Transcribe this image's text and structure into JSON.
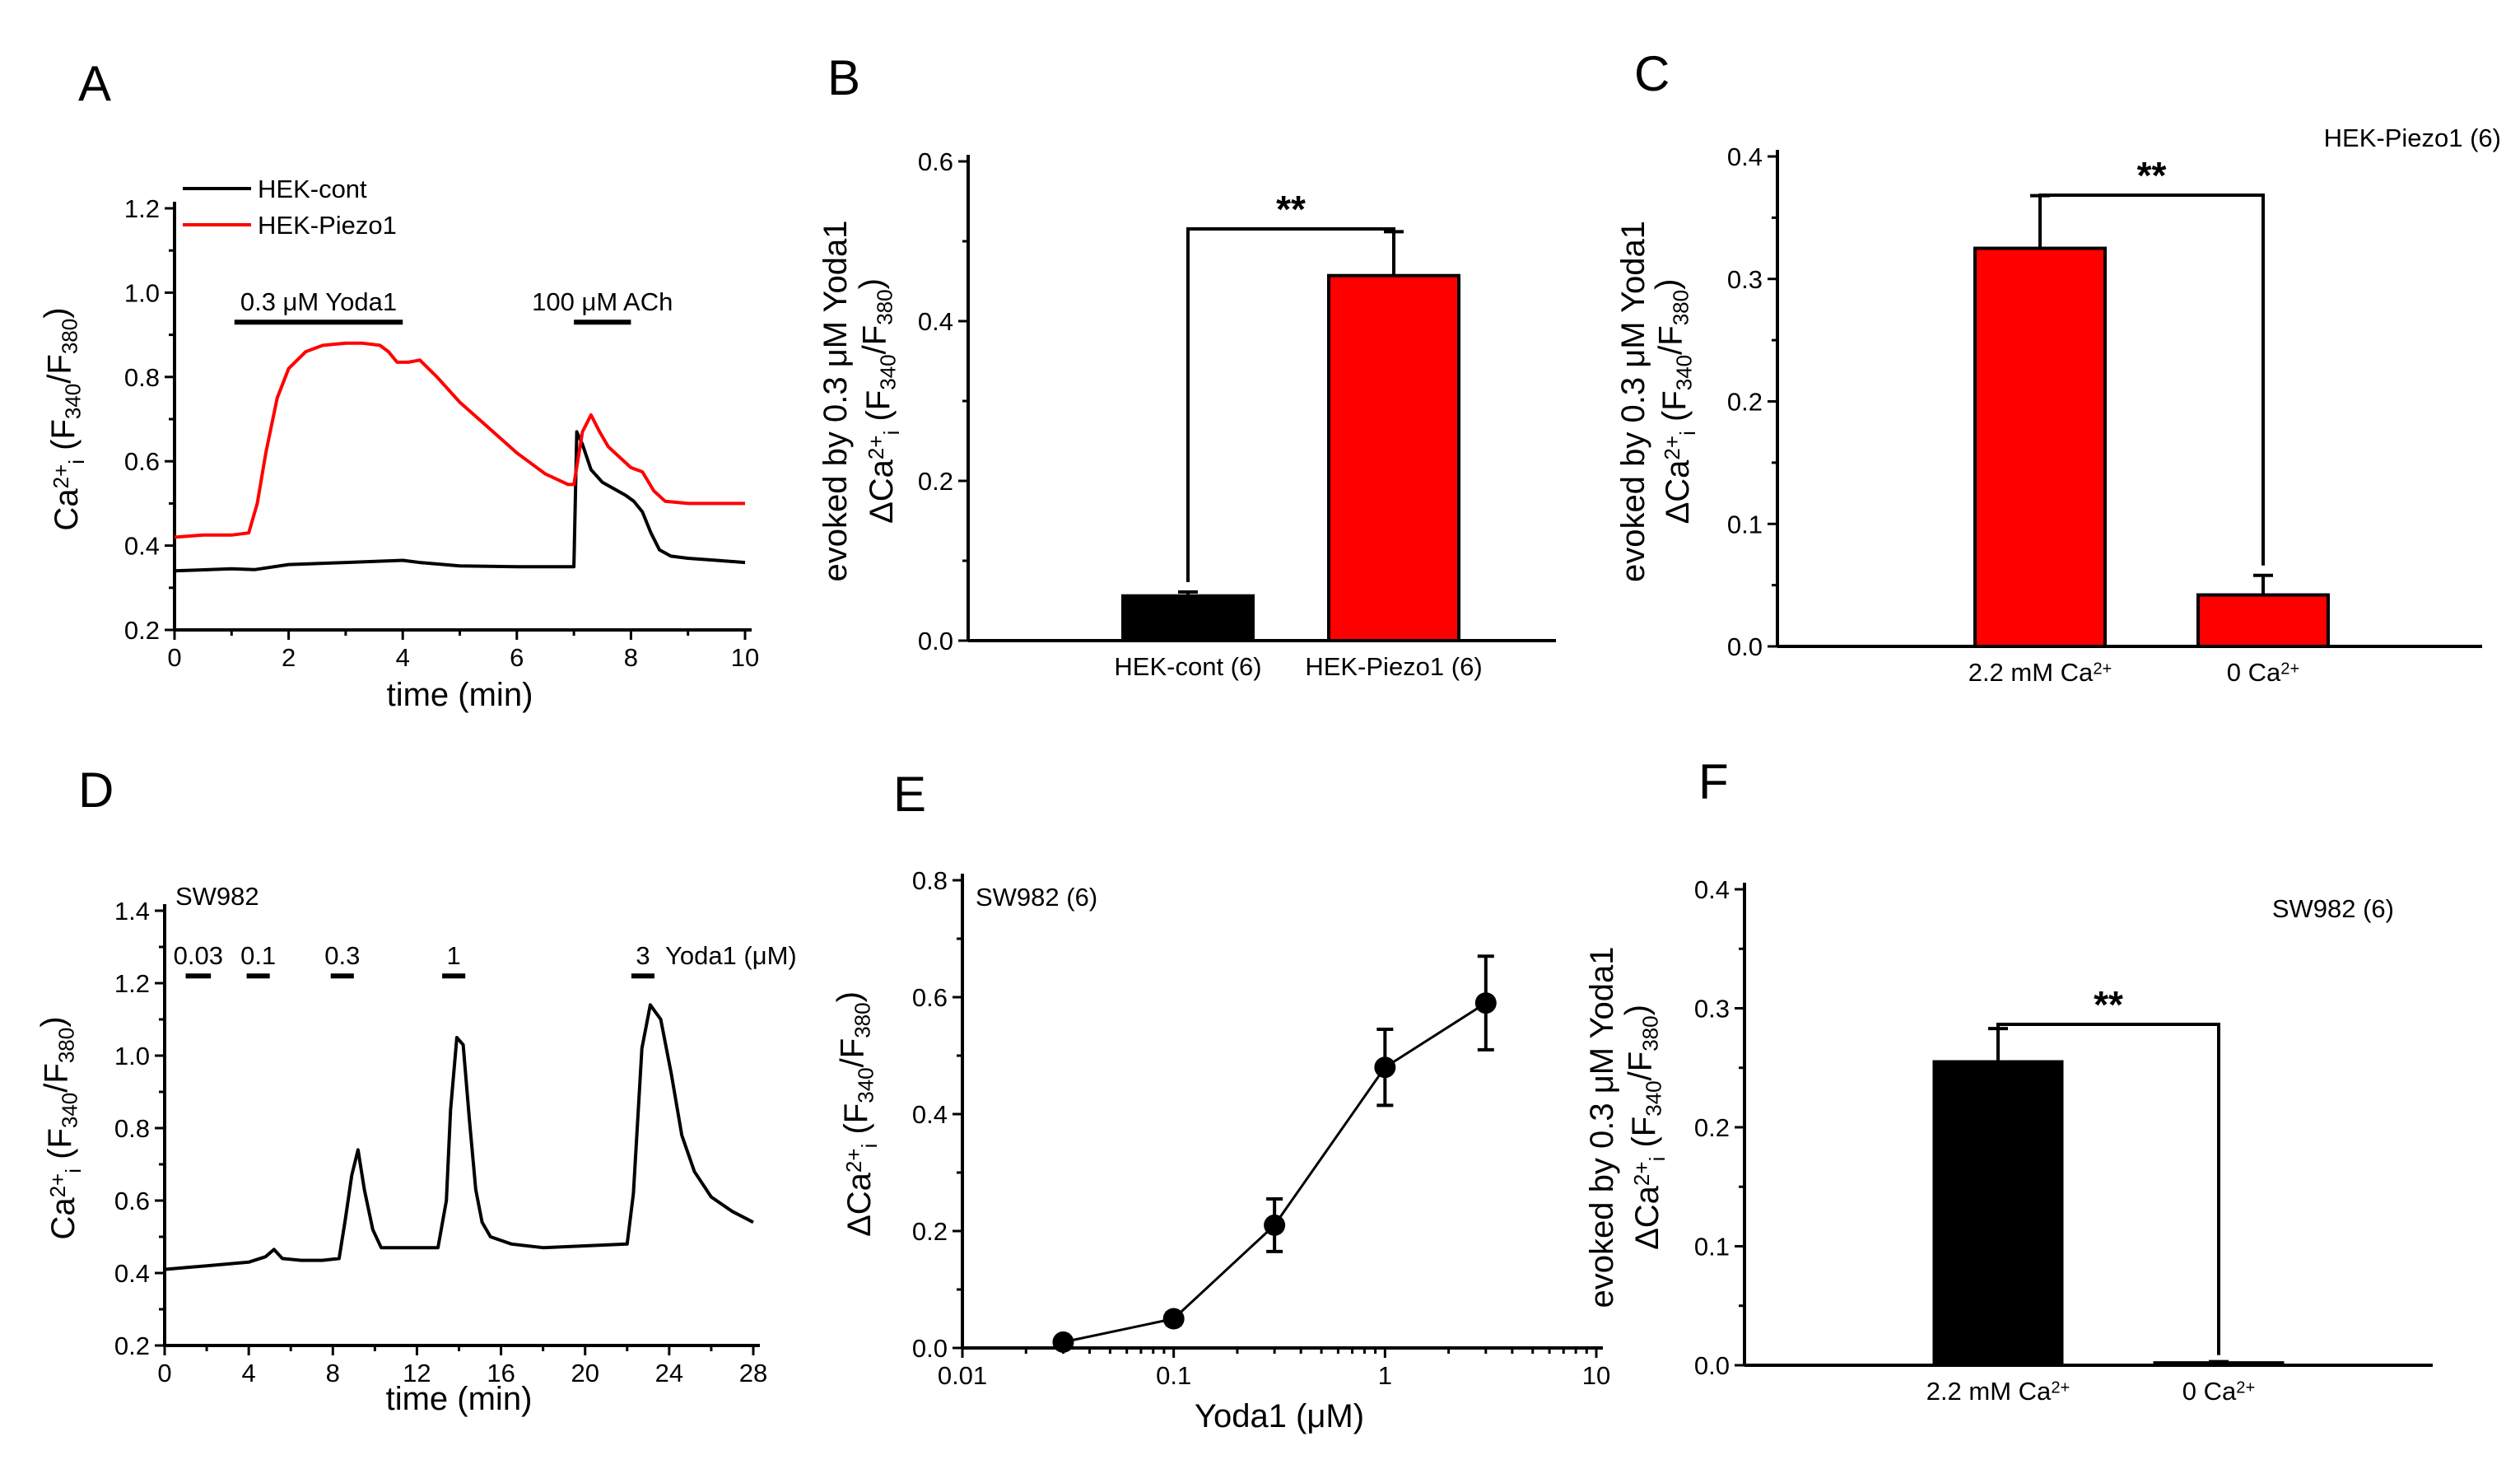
{
  "figure": {
    "panels": {
      "A": {
        "letter": "A"
      },
      "B": {
        "letter": "B"
      },
      "C": {
        "letter": "C"
      },
      "D": {
        "letter": "D",
        "annotation": "SW982"
      },
      "E": {
        "letter": "E"
      },
      "F": {
        "letter": "F"
      }
    }
  },
  "colors": {
    "red": "#ff0000",
    "black": "#000000"
  },
  "chart_data": [
    {
      "panel": "A",
      "type": "line",
      "xlabel": "time (min)",
      "ylabel": "Ca2+i (F340/F380)",
      "xlim": [
        0,
        10
      ],
      "ylim": [
        0.2,
        1.2
      ],
      "xticks": [
        0,
        2,
        4,
        6,
        8,
        10
      ],
      "yticks": [
        0.2,
        0.4,
        0.6,
        0.8,
        1.0,
        1.2
      ],
      "xtick_labels": [
        "0",
        "2",
        "4",
        "6",
        "8",
        "10"
      ],
      "ytick_labels": [
        "0.2",
        "0.4",
        "0.6",
        "0.8",
        "1.0",
        "1.2"
      ],
      "legend": [
        "HEK-cont",
        "HEK-Piezo1"
      ],
      "annotations": [
        {
          "text": "0.3 μM Yoda1",
          "x_start": 1.05,
          "x_end": 4.0,
          "y": 0.93
        },
        {
          "text": "100 μM ACh",
          "x_start": 7.0,
          "x_end": 8.0,
          "y": 0.93
        }
      ],
      "series": [
        {
          "name": "HEK-cont",
          "color": "#000000",
          "x": [
            0,
            1,
            1.4,
            2,
            3,
            4,
            4.3,
            5,
            6,
            6.9,
            7.0,
            7.05,
            7.15,
            7.3,
            7.5,
            7.7,
            7.9,
            8.05,
            8.2,
            8.35,
            8.5,
            8.7,
            9,
            9.5,
            10
          ],
          "y": [
            0.34,
            0.345,
            0.343,
            0.355,
            0.36,
            0.365,
            0.36,
            0.352,
            0.35,
            0.35,
            0.35,
            0.67,
            0.64,
            0.58,
            0.55,
            0.535,
            0.52,
            0.505,
            0.48,
            0.43,
            0.39,
            0.375,
            0.37,
            0.365,
            0.36
          ]
        },
        {
          "name": "HEK-Piezo1",
          "color": "#ff0000",
          "x": [
            0,
            0.5,
            1,
            1.3,
            1.45,
            1.6,
            1.8,
            2,
            2.3,
            2.6,
            3,
            3.3,
            3.6,
            3.75,
            3.9,
            4.1,
            4.3,
            4.6,
            5,
            5.5,
            6,
            6.5,
            6.9,
            7.0,
            7.15,
            7.3,
            7.45,
            7.6,
            7.8,
            8.0,
            8.2,
            8.4,
            8.6,
            9,
            9.5,
            10
          ],
          "y": [
            0.42,
            0.425,
            0.425,
            0.43,
            0.5,
            0.62,
            0.75,
            0.82,
            0.86,
            0.875,
            0.88,
            0.88,
            0.875,
            0.86,
            0.835,
            0.835,
            0.84,
            0.8,
            0.74,
            0.68,
            0.62,
            0.57,
            0.545,
            0.545,
            0.67,
            0.71,
            0.67,
            0.635,
            0.61,
            0.585,
            0.575,
            0.53,
            0.505,
            0.5,
            0.5,
            0.5
          ]
        }
      ]
    },
    {
      "panel": "B",
      "type": "bar",
      "ylabel_top": "ΔCa2+i (F340/F380)",
      "ylabel_bottom": "evoked by 0.3 μM Yoda1",
      "categories": [
        "HEK-cont (6)",
        "HEK-Piezo1 (6)"
      ],
      "values": [
        0.056,
        0.457
      ],
      "errors": [
        0.005,
        0.055
      ],
      "bar_colors": [
        "#000000",
        "#ff0000"
      ],
      "ylim": [
        0,
        0.6
      ],
      "yticks": [
        0.0,
        0.2,
        0.4,
        0.6
      ],
      "ytick_labels": [
        "0.0",
        "0.2",
        "0.4",
        "0.6"
      ],
      "significance": "**"
    },
    {
      "panel": "C",
      "type": "bar",
      "title": "HEK-Piezo1 (6)",
      "ylabel_top": "ΔCa2+i (F340/F380)",
      "ylabel_bottom": "evoked by 0.3 μM Yoda1",
      "categories": [
        "2.2 mM Ca2+",
        "0 Ca2+"
      ],
      "values": [
        0.325,
        0.042
      ],
      "errors": [
        0.043,
        0.016
      ],
      "bar_colors": [
        "#ff0000",
        "#ff0000"
      ],
      "ylim": [
        0,
        0.4
      ],
      "yticks": [
        0.0,
        0.1,
        0.2,
        0.3,
        0.4
      ],
      "ytick_labels": [
        "0.0",
        "0.1",
        "0.2",
        "0.3",
        "0.4"
      ],
      "significance": "**"
    },
    {
      "panel": "D",
      "type": "line",
      "xlabel": "time (min)",
      "ylabel": "Ca2+i (F340/F380)",
      "xlim": [
        0,
        28
      ],
      "ylim": [
        0.2,
        1.4
      ],
      "xticks": [
        0,
        4,
        8,
        12,
        16,
        20,
        24,
        28
      ],
      "yticks": [
        0.2,
        0.4,
        0.6,
        0.8,
        1.0,
        1.2,
        1.4
      ],
      "xtick_labels": [
        "0",
        "4",
        "8",
        "12",
        "16",
        "20",
        "24",
        "28"
      ],
      "ytick_labels": [
        "0.2",
        "0.4",
        "0.6",
        "0.8",
        "1.0",
        "1.2",
        "1.4"
      ],
      "unit_label": "Yoda1 (μM)",
      "annotations": [
        {
          "text": "0.03",
          "x_start": 1.0,
          "x_end": 2.2,
          "y": 1.22
        },
        {
          "text": "0.1",
          "x_start": 3.9,
          "x_end": 5.0,
          "y": 1.22
        },
        {
          "text": "0.3",
          "x_start": 7.9,
          "x_end": 9.0,
          "y": 1.22
        },
        {
          "text": "1",
          "x_start": 13.2,
          "x_end": 14.3,
          "y": 1.22
        },
        {
          "text": "3",
          "x_start": 22.2,
          "x_end": 23.3,
          "y": 1.22
        }
      ],
      "series": [
        {
          "name": "SW982",
          "color": "#000000",
          "x": [
            0,
            1,
            2,
            3,
            4,
            4.8,
            5.2,
            5.6,
            6.5,
            7.5,
            8.3,
            8.6,
            8.9,
            9.2,
            9.5,
            9.9,
            10.3,
            11,
            12,
            13,
            13.4,
            13.6,
            13.9,
            14.2,
            14.5,
            14.8,
            15.1,
            15.5,
            16.5,
            18,
            20,
            22,
            22.3,
            22.7,
            23.1,
            23.6,
            24.1,
            24.6,
            25.2,
            26,
            27,
            28
          ],
          "y": [
            0.41,
            0.415,
            0.42,
            0.425,
            0.43,
            0.445,
            0.465,
            0.44,
            0.435,
            0.435,
            0.44,
            0.55,
            0.67,
            0.74,
            0.63,
            0.52,
            0.47,
            0.47,
            0.47,
            0.47,
            0.6,
            0.85,
            1.05,
            1.03,
            0.82,
            0.63,
            0.54,
            0.5,
            0.48,
            0.47,
            0.475,
            0.48,
            0.62,
            1.02,
            1.14,
            1.1,
            0.95,
            0.78,
            0.68,
            0.61,
            0.57,
            0.54
          ]
        }
      ]
    },
    {
      "panel": "E",
      "type": "scatter",
      "title": "SW982 (6)",
      "xlabel": "Yoda1 (μM)",
      "ylabel": "ΔCa2+i (F340/F380)",
      "xscale": "log",
      "xlim": [
        0.01,
        10
      ],
      "ylim": [
        0,
        0.8
      ],
      "xticks": [
        0.01,
        0.1,
        1,
        10
      ],
      "yticks": [
        0.0,
        0.2,
        0.4,
        0.6,
        0.8
      ],
      "xtick_labels": [
        "0.01",
        "0.1",
        "1",
        "10"
      ],
      "ytick_labels": [
        "0.0",
        "0.2",
        "0.4",
        "0.6",
        "0.8"
      ],
      "x": [
        0.03,
        0.1,
        0.3,
        1,
        3
      ],
      "y": [
        0.01,
        0.05,
        0.21,
        0.48,
        0.59
      ],
      "errors": [
        0.005,
        0.01,
        0.045,
        0.065,
        0.08
      ]
    },
    {
      "panel": "F",
      "type": "bar",
      "title": "SW982 (6)",
      "ylabel_top": "ΔCa2+i (F340/F380)",
      "ylabel_bottom": "evoked by 0.3 μM Yoda1",
      "categories": [
        "2.2 mM Ca2+",
        "0 Ca2+"
      ],
      "values": [
        0.255,
        0.002
      ],
      "errors": [
        0.028,
        0.001
      ],
      "bar_colors": [
        "#000000",
        "#000000"
      ],
      "ylim": [
        0,
        0.4
      ],
      "yticks": [
        0.0,
        0.1,
        0.2,
        0.3,
        0.4
      ],
      "ytick_labels": [
        "0.0",
        "0.1",
        "0.2",
        "0.3",
        "0.4"
      ],
      "significance": "**"
    }
  ]
}
